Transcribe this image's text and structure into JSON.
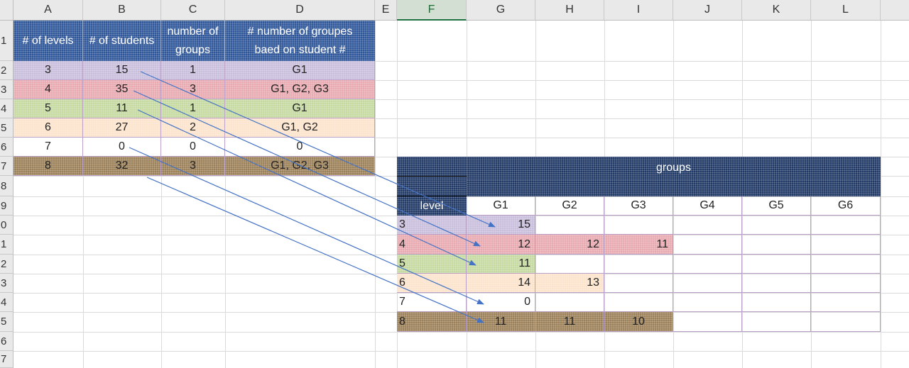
{
  "columns": [
    "A",
    "B",
    "C",
    "D",
    "E",
    "F",
    "G",
    "H",
    "I",
    "J",
    "K",
    "L"
  ],
  "rows": [
    "1",
    "2",
    "3",
    "4",
    "5",
    "6",
    "7",
    "8",
    "9",
    "0",
    "1",
    "2",
    "3",
    "4",
    "5",
    "6",
    "7"
  ],
  "colors": {
    "header_blue": "#2e5598",
    "navy": "#1f3865",
    "level3": "#c8bedb",
    "level4": "#e8a9b0",
    "level5": "#c5d9a0",
    "level6": "#fbe3cc",
    "level8": "#9a7f57",
    "arrow": "#4472c4"
  },
  "left_table": {
    "headers": [
      "# of levels",
      "# of students",
      "number of groups",
      "# number of groupes baed on student #"
    ],
    "rows": [
      {
        "level": "3",
        "students": "15",
        "groups": "1",
        "names": "G1"
      },
      {
        "level": "4",
        "students": "35",
        "groups": "3",
        "names": "G1, G2, G3"
      },
      {
        "level": "5",
        "students": "11",
        "groups": "1",
        "names": "G1"
      },
      {
        "level": "6",
        "students": "27",
        "groups": "2",
        "names": "G1, G2"
      },
      {
        "level": "7",
        "students": "0",
        "groups": "0",
        "names": "0"
      },
      {
        "level": "8",
        "students": "32",
        "groups": "3",
        "names": "G1, G2, G3"
      }
    ]
  },
  "right_table": {
    "title": "groups",
    "level_label": "level",
    "group_headers": [
      "G1",
      "G2",
      "G3",
      "G4",
      "G5",
      "G6"
    ],
    "rows": [
      {
        "level": "3",
        "g1": "15",
        "g2": "",
        "g3": ""
      },
      {
        "level": "4",
        "g1": "12",
        "g2": "12",
        "g3": "11"
      },
      {
        "level": "5",
        "g1": "11",
        "g2": "",
        "g3": ""
      },
      {
        "level": "6",
        "g1": "14",
        "g2": "13",
        "g3": ""
      },
      {
        "level": "7",
        "g1": "0",
        "g2": "",
        "g3": ""
      },
      {
        "level": "8",
        "g1": "11",
        "g2": "11",
        "g3": "10"
      }
    ]
  }
}
